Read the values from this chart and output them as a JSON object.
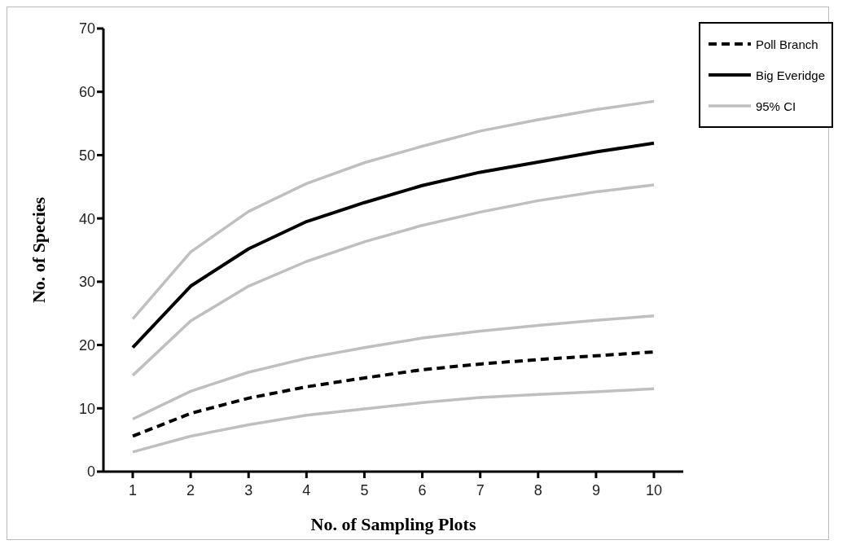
{
  "chart_data": {
    "type": "line",
    "xlabel": "No. of Sampling Plots",
    "ylabel": "No. of Species",
    "categories": [
      "1",
      "2",
      "3",
      "4",
      "5",
      "6",
      "7",
      "8",
      "9",
      "10"
    ],
    "series": [
      {
        "name": "Poll Branch",
        "color": "#000000",
        "line_style": "dashed",
        "values": [
          5.6,
          9.2,
          11.6,
          13.4,
          14.8,
          16.1,
          17.0,
          17.7,
          18.3,
          18.9
        ]
      },
      {
        "name": "Big Everidge",
        "color": "#000000",
        "line_style": "solid",
        "values": [
          19.6,
          29.3,
          35.2,
          39.5,
          42.5,
          45.2,
          47.3,
          48.9,
          50.5,
          51.9
        ]
      },
      {
        "name": "95% CI",
        "color": "#bfbfbf",
        "line_style": "solid",
        "values": [
          24.1,
          34.7,
          41.1,
          45.5,
          48.8,
          51.4,
          53.8,
          55.6,
          57.2,
          58.5
        ]
      },
      {
        "color": "#bfbfbf",
        "line_style": "solid",
        "values": [
          15.2,
          23.8,
          29.3,
          33.2,
          36.3,
          38.9,
          41.0,
          42.8,
          44.2,
          45.3
        ]
      },
      {
        "color": "#bfbfbf",
        "line_style": "solid",
        "values": [
          8.3,
          12.7,
          15.7,
          17.9,
          19.6,
          21.1,
          22.2,
          23.1,
          23.9,
          24.6
        ]
      },
      {
        "color": "#bfbfbf",
        "line_style": "solid",
        "values": [
          3.1,
          5.6,
          7.4,
          8.9,
          9.9,
          10.9,
          11.7,
          12.2,
          12.6,
          13.1
        ]
      }
    ],
    "ylim": [
      0,
      70
    ],
    "yticks": [
      0,
      10,
      20,
      30,
      40,
      50,
      60,
      70
    ],
    "grid": false,
    "legend": "top right",
    "marker": "none"
  }
}
